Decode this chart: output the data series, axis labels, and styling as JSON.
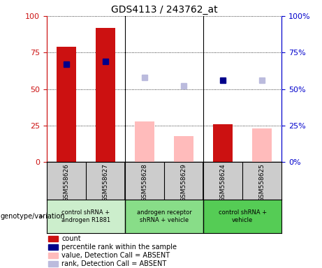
{
  "title": "GDS4113 / 243762_at",
  "samples": [
    "GSM558626",
    "GSM558627",
    "GSM558628",
    "GSM558629",
    "GSM558624",
    "GSM558625"
  ],
  "groups": [
    {
      "label": "control shRNA +\nandrogen R1881",
      "color": "#cceecc",
      "samples": [
        0,
        1
      ]
    },
    {
      "label": "androgen receptor\nshRNA + vehicle",
      "color": "#88dd88",
      "samples": [
        2,
        3
      ]
    },
    {
      "label": "control shRNA +\nvehicle",
      "color": "#55cc55",
      "samples": [
        4,
        5
      ]
    }
  ],
  "count_values": [
    79,
    92,
    null,
    null,
    26,
    null
  ],
  "count_color": "#cc1111",
  "percentile_values": [
    67,
    69,
    null,
    null,
    56,
    null
  ],
  "percentile_color_present": "#00008b",
  "value_absent": [
    null,
    null,
    28,
    18,
    null,
    23
  ],
  "value_absent_color": "#ffbbbb",
  "rank_absent": [
    null,
    null,
    58,
    52,
    null,
    56
  ],
  "rank_absent_color": "#bbbbdd",
  "ylim": [
    0,
    100
  ],
  "yticks": [
    0,
    25,
    50,
    75,
    100
  ],
  "left_tick_color": "#cc1111",
  "right_tick_color": "#0000cc",
  "sample_bg": "#cccccc",
  "bar_width": 0.5,
  "marker_size": 6,
  "legend_items": [
    {
      "color": "#cc1111",
      "label": "count"
    },
    {
      "color": "#00008b",
      "label": "percentile rank within the sample"
    },
    {
      "color": "#ffbbbb",
      "label": "value, Detection Call = ABSENT"
    },
    {
      "color": "#bbbbdd",
      "label": "rank, Detection Call = ABSENT"
    }
  ],
  "genotype_label": "genotype/variation"
}
